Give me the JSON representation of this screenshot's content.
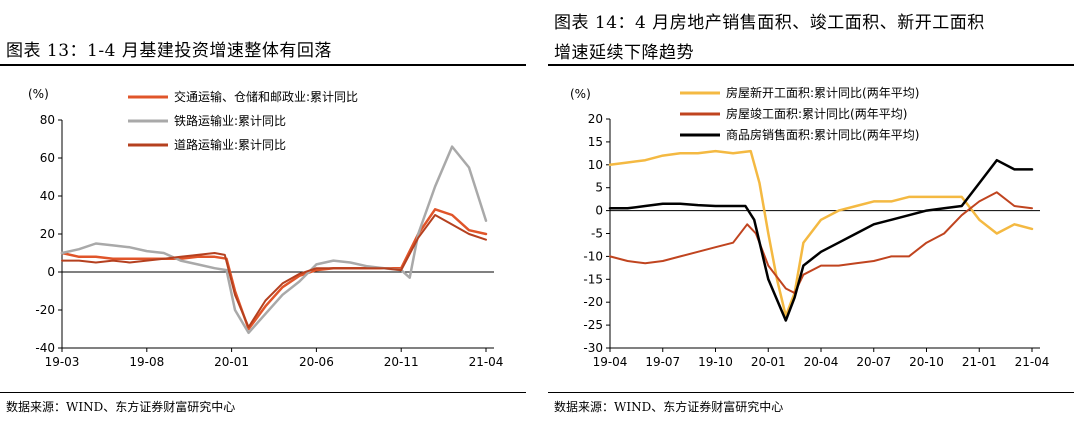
{
  "left": {
    "title": "图表 13：1-4 月基建投资增速整体有回落",
    "source": "数据来源：WIND、东方证券财富研究中心",
    "chart_data": {
      "type": "line",
      "title": "图表 13：1-4 月基建投资增速整体有回落",
      "ylabel": "(%)",
      "ylim": [
        -40,
        80
      ],
      "yticks": [
        -40,
        -20,
        0,
        20,
        40,
        60,
        80
      ],
      "x_tick_labels": [
        {
          "label": "19-03",
          "pos": 0
        },
        {
          "label": "19-08",
          "pos": 5
        },
        {
          "label": "20-01",
          "pos": 10
        },
        {
          "label": "20-06",
          "pos": 15
        },
        {
          "label": "20-11",
          "pos": 20
        },
        {
          "label": "21-04",
          "pos": 25
        }
      ],
      "legend_position": "top",
      "series": [
        {
          "name": "交通运输、仓储和邮政业:累计同比",
          "color": "#E0552A",
          "width": 2.5,
          "points": [
            [
              0,
              10
            ],
            [
              1,
              8
            ],
            [
              2,
              8
            ],
            [
              3,
              7
            ],
            [
              4,
              7
            ],
            [
              5,
              7
            ],
            [
              6,
              7
            ],
            [
              7,
              7
            ],
            [
              8,
              8
            ],
            [
              9,
              8
            ],
            [
              9.7,
              7
            ],
            [
              10.2,
              -10
            ],
            [
              11,
              -30
            ],
            [
              12,
              -18
            ],
            [
              13,
              -8
            ],
            [
              14,
              -2
            ],
            [
              15,
              1
            ],
            [
              16,
              2
            ],
            [
              17,
              2
            ],
            [
              18,
              2
            ],
            [
              19,
              2
            ],
            [
              20,
              2
            ],
            [
              21,
              20
            ],
            [
              22,
              33
            ],
            [
              23,
              30
            ],
            [
              24,
              22
            ],
            [
              25,
              20
            ]
          ]
        },
        {
          "name": "铁路运输业:累计同比",
          "color": "#A9A9A9",
          "width": 2.5,
          "points": [
            [
              0,
              10
            ],
            [
              1,
              12
            ],
            [
              2,
              15
            ],
            [
              3,
              14
            ],
            [
              4,
              13
            ],
            [
              5,
              11
            ],
            [
              6,
              10
            ],
            [
              7,
              6
            ],
            [
              8,
              4
            ],
            [
              9,
              2
            ],
            [
              9.7,
              1
            ],
            [
              10.2,
              -20
            ],
            [
              11,
              -32
            ],
            [
              12,
              -22
            ],
            [
              13,
              -12
            ],
            [
              14,
              -5
            ],
            [
              15,
              4
            ],
            [
              16,
              6
            ],
            [
              17,
              5
            ],
            [
              18,
              3
            ],
            [
              19,
              2
            ],
            [
              20,
              1
            ],
            [
              20.5,
              -3
            ],
            [
              21,
              20
            ],
            [
              22,
              45
            ],
            [
              23,
              66
            ],
            [
              24,
              55
            ],
            [
              25,
              27
            ]
          ]
        },
        {
          "name": "道路运输业:累计同比",
          "color": "#B5401F",
          "width": 2,
          "points": [
            [
              0,
              6
            ],
            [
              1,
              6
            ],
            [
              2,
              5
            ],
            [
              3,
              6
            ],
            [
              4,
              5
            ],
            [
              5,
              6
            ],
            [
              6,
              7
            ],
            [
              7,
              8
            ],
            [
              8,
              9
            ],
            [
              9,
              10
            ],
            [
              9.6,
              9
            ],
            [
              10.2,
              -12
            ],
            [
              11,
              -29
            ],
            [
              12,
              -15
            ],
            [
              13,
              -6
            ],
            [
              14,
              -1
            ],
            [
              15,
              2
            ],
            [
              16,
              2
            ],
            [
              17,
              2
            ],
            [
              18,
              2
            ],
            [
              19,
              2
            ],
            [
              20,
              1
            ],
            [
              21,
              18
            ],
            [
              22,
              30
            ],
            [
              23,
              25
            ],
            [
              24,
              20
            ],
            [
              25,
              17
            ]
          ]
        }
      ]
    }
  },
  "right": {
    "title_line1": "图表 14：4 月房地产销售面积、竣工面积、新开工面积",
    "title_line2": "增速延续下降趋势",
    "source": "数据来源：WIND、东方证券财富研究中心",
    "chart_data": {
      "type": "line",
      "title": "图表 14：4 月房地产销售面积、竣工面积、新开工面积增速延续下降趋势",
      "ylabel": "(%)",
      "ylim": [
        -30,
        20
      ],
      "yticks": [
        -30,
        -25,
        -20,
        -15,
        -10,
        -5,
        0,
        5,
        10,
        15,
        20
      ],
      "x_tick_labels": [
        {
          "label": "19-04",
          "pos": 0
        },
        {
          "label": "19-07",
          "pos": 3
        },
        {
          "label": "19-10",
          "pos": 6
        },
        {
          "label": "20-01",
          "pos": 9
        },
        {
          "label": "20-04",
          "pos": 12
        },
        {
          "label": "20-07",
          "pos": 15
        },
        {
          "label": "20-10",
          "pos": 18
        },
        {
          "label": "21-01",
          "pos": 21
        },
        {
          "label": "21-04",
          "pos": 24
        }
      ],
      "legend_position": "top",
      "series": [
        {
          "name": "房屋新开工面积:累计同比(两年平均)",
          "color": "#F4B942",
          "width": 2.5,
          "points": [
            [
              0,
              10
            ],
            [
              1,
              10.5
            ],
            [
              2,
              11
            ],
            [
              3,
              12
            ],
            [
              4,
              12.5
            ],
            [
              5,
              12.5
            ],
            [
              6,
              13
            ],
            [
              7,
              12.5
            ],
            [
              8,
              13
            ],
            [
              8.5,
              6
            ],
            [
              9,
              -5
            ],
            [
              9.5,
              -15
            ],
            [
              10,
              -23
            ],
            [
              10.5,
              -18
            ],
            [
              11,
              -7
            ],
            [
              12,
              -2
            ],
            [
              13,
              0
            ],
            [
              14,
              1
            ],
            [
              15,
              2
            ],
            [
              16,
              2
            ],
            [
              17,
              3
            ],
            [
              18,
              3
            ],
            [
              19,
              3
            ],
            [
              20,
              3
            ],
            [
              21,
              -2
            ],
            [
              22,
              -5
            ],
            [
              23,
              -3
            ],
            [
              24,
              -4
            ]
          ]
        },
        {
          "name": "房屋竣工面积:累计同比(两年平均)",
          "color": "#C0441F",
          "width": 2,
          "points": [
            [
              0,
              -10
            ],
            [
              1,
              -11
            ],
            [
              2,
              -11.5
            ],
            [
              3,
              -11
            ],
            [
              4,
              -10
            ],
            [
              5,
              -9
            ],
            [
              6,
              -8
            ],
            [
              7,
              -7
            ],
            [
              7.8,
              -3
            ],
            [
              8.3,
              -5
            ],
            [
              9,
              -12
            ],
            [
              10,
              -17
            ],
            [
              10.5,
              -18
            ],
            [
              11,
              -14
            ],
            [
              12,
              -12
            ],
            [
              13,
              -12
            ],
            [
              14,
              -11.5
            ],
            [
              15,
              -11
            ],
            [
              16,
              -10
            ],
            [
              17,
              -10
            ],
            [
              18,
              -7
            ],
            [
              19,
              -5
            ],
            [
              20,
              -1
            ],
            [
              21,
              2
            ],
            [
              22,
              4
            ],
            [
              23,
              1
            ],
            [
              24,
              0.5
            ]
          ]
        },
        {
          "name": "商品房销售面积:累计同比(两年平均)",
          "color": "#000000",
          "width": 2.5,
          "points": [
            [
              0,
              0.5
            ],
            [
              1,
              0.5
            ],
            [
              2,
              1
            ],
            [
              3,
              1.5
            ],
            [
              4,
              1.5
            ],
            [
              5,
              1.2
            ],
            [
              6,
              1
            ],
            [
              7,
              1
            ],
            [
              7.7,
              1
            ],
            [
              8.2,
              -2
            ],
            [
              9,
              -15
            ],
            [
              10,
              -24
            ],
            [
              10.5,
              -19
            ],
            [
              11,
              -12
            ],
            [
              12,
              -9
            ],
            [
              13,
              -7
            ],
            [
              14,
              -5
            ],
            [
              15,
              -3
            ],
            [
              16,
              -2
            ],
            [
              17,
              -1
            ],
            [
              18,
              0
            ],
            [
              19,
              0.5
            ],
            [
              20,
              1
            ],
            [
              21,
              6
            ],
            [
              22,
              11
            ],
            [
              23,
              9
            ],
            [
              24,
              9
            ]
          ]
        }
      ]
    }
  }
}
